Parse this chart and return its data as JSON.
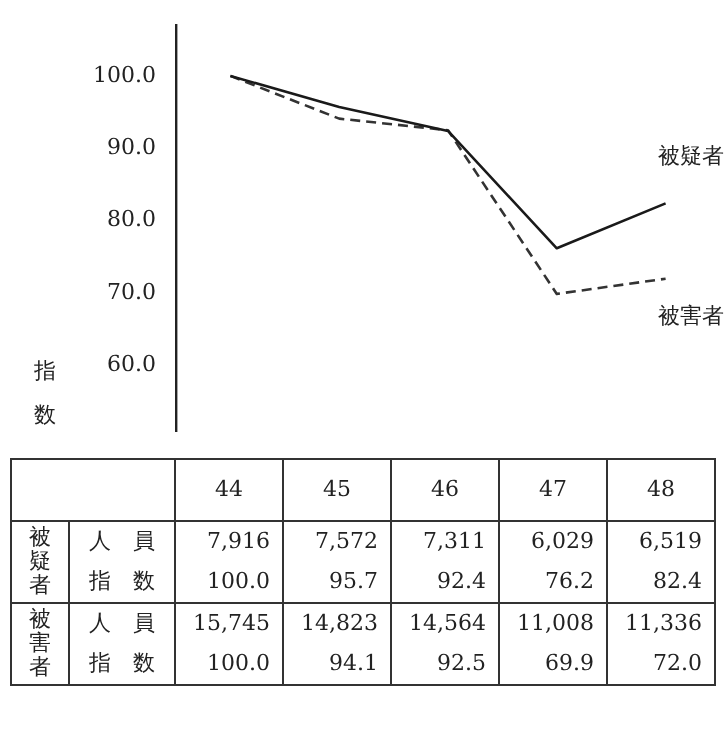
{
  "chart_data": {
    "type": "line",
    "ylabel": "指数",
    "categories": [
      "44",
      "45",
      "46",
      "47",
      "48"
    ],
    "series": [
      {
        "name": "被疑者",
        "color": "#1a1a1a",
        "line_style": "solid",
        "values": [
          100.0,
          95.7,
          92.4,
          76.2,
          82.4
        ],
        "value_labels": [
          "100.0",
          "95.7",
          "92.4",
          "76.2",
          "82.4"
        ]
      },
      {
        "name": "被害者",
        "color": "#333333",
        "line_style": "dashed",
        "values": [
          100.0,
          94.1,
          92.5,
          69.9,
          72.0
        ],
        "value_labels": [
          "100.0",
          "94.1",
          "92.5",
          "69.9",
          "72.0"
        ]
      }
    ],
    "annotations": [
      "人　員",
      "指　数",
      "7,916",
      "7,572",
      "7,311",
      "6,029",
      "6,519",
      "15,745",
      "14,823",
      "14,564",
      "11,008",
      "11,336"
    ],
    "ylim": [
      51,
      107
    ],
    "yticks": [
      {
        "value": 60,
        "label": "60.0"
      },
      {
        "value": 70,
        "label": "70.0"
      },
      {
        "value": 80,
        "label": "80.0"
      },
      {
        "value": 90,
        "label": "90.0"
      },
      {
        "value": 100,
        "label": "100.0"
      }
    ],
    "grid": false,
    "legend": false,
    "marker": "none",
    "tick_labels": "y",
    "data_labels": true
  }
}
